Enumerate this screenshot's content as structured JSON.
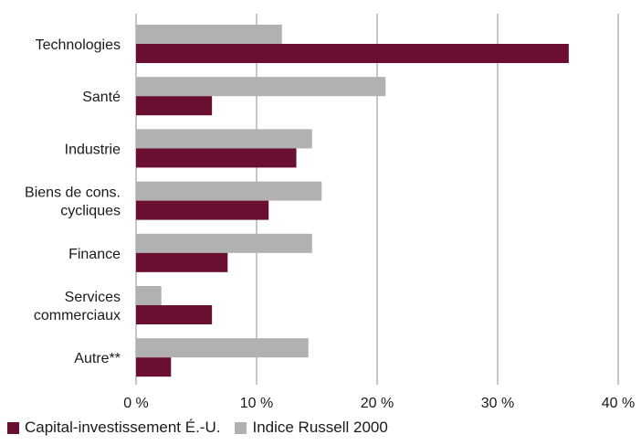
{
  "chart_data": {
    "type": "bar",
    "orientation": "horizontal",
    "categories": [
      [
        "Technologies"
      ],
      [
        "Santé"
      ],
      [
        "Industrie"
      ],
      [
        "Biens de cons.",
        "cycliques"
      ],
      [
        "Finance"
      ],
      [
        "Services",
        "commerciaux"
      ],
      [
        "Autre**"
      ]
    ],
    "series": [
      {
        "name": "Indice Russell 2000",
        "color": "#b1b1b1",
        "values": [
          12.1,
          20.7,
          14.6,
          15.4,
          14.6,
          2.1,
          14.3
        ]
      },
      {
        "name": "Capital-investissement É.-U.",
        "color": "#6b0f32",
        "values": [
          35.9,
          6.3,
          13.3,
          11.0,
          7.6,
          6.3,
          2.9
        ]
      }
    ],
    "xlim": [
      0,
      40
    ],
    "xticks": [
      0,
      10,
      20,
      30,
      40
    ],
    "xtick_labels": [
      "0 %",
      "10 %",
      "20 %",
      "30 %",
      "40 %"
    ],
    "grid": "vertical",
    "legend_position": "bottom-left"
  },
  "legend": [
    {
      "label": "Capital-investissement É.-U.",
      "color": "#6b0f32"
    },
    {
      "label": "Indice Russell 2000",
      "color": "#b1b1b1"
    }
  ]
}
